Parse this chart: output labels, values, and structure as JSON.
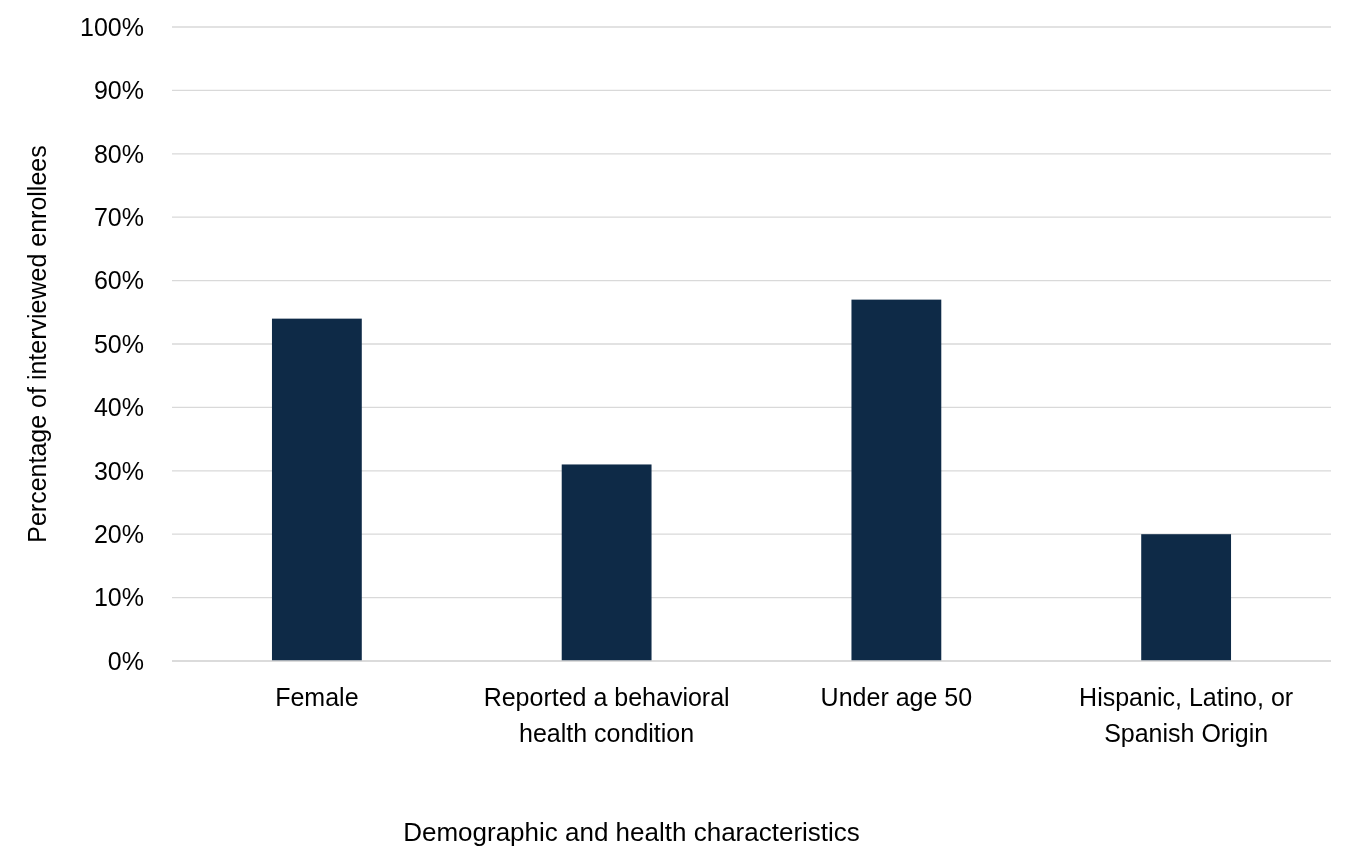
{
  "chart_data": {
    "type": "bar",
    "xlabel": "Demographic and health characteristics",
    "ylabel": "Percentage of interviewed enrollees",
    "categories": [
      "Female",
      "Reported a behavioral health condition",
      "Under age 50",
      "Hispanic, Latino, or Spanish Origin"
    ],
    "values": [
      54,
      31,
      57,
      20
    ],
    "color": "#0e2a47",
    "ylim": [
      0,
      100
    ],
    "yticks": [
      {
        "value": 0,
        "label": "0%"
      },
      {
        "value": 10,
        "label": "10%"
      },
      {
        "value": 20,
        "label": "20%"
      },
      {
        "value": 30,
        "label": "30%"
      },
      {
        "value": 40,
        "label": "40%"
      },
      {
        "value": 50,
        "label": "50%"
      },
      {
        "value": 60,
        "label": "60%"
      },
      {
        "value": 70,
        "label": "70%"
      },
      {
        "value": 80,
        "label": "80%"
      },
      {
        "value": 90,
        "label": "90%"
      },
      {
        "value": 100,
        "label": "100%"
      }
    ],
    "grid": "y"
  }
}
